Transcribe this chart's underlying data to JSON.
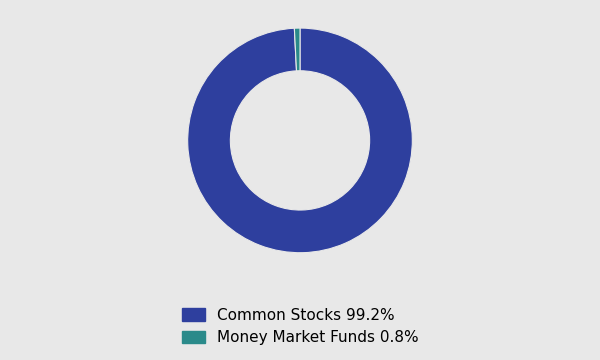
{
  "slices": [
    99.2,
    0.8
  ],
  "labels": [
    "Common Stocks 99.2%",
    "Money Market Funds 0.8%"
  ],
  "colors": [
    "#2e3f9e",
    "#2a8a8a"
  ],
  "background_color": "#e8e8e8",
  "donut_width": 0.38,
  "startangle": 90
}
